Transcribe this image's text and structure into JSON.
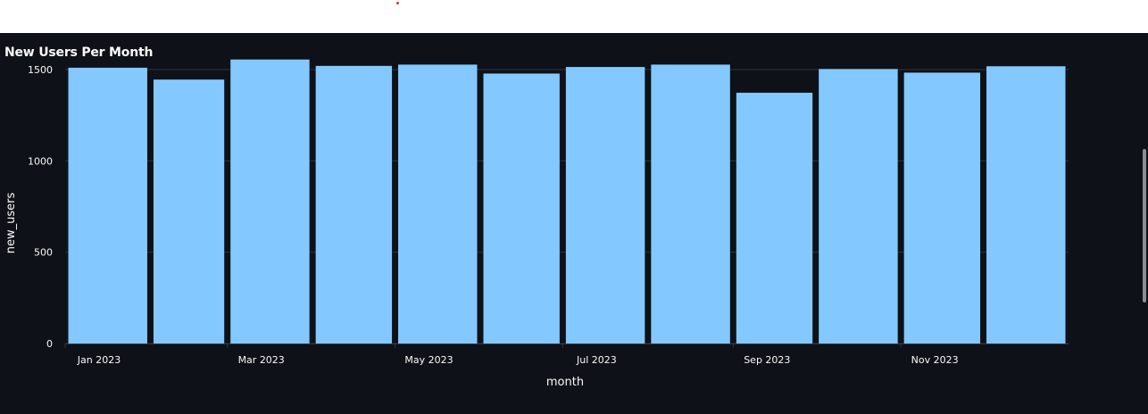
{
  "chart_data": {
    "type": "bar",
    "title": "New Users Per Month",
    "xlabel": "month",
    "ylabel": "new_users",
    "categories": [
      "2023-01",
      "2023-02",
      "2023-03",
      "2023-04",
      "2023-05",
      "2023-06",
      "2023-07",
      "2023-08",
      "2023-09",
      "2023-10",
      "2023-11",
      "2023-12"
    ],
    "category_days": [
      31,
      28,
      31,
      30,
      31,
      30,
      31,
      31,
      30,
      31,
      30,
      31
    ],
    "x_tick_labels": [
      "Jan 2023",
      "Mar 2023",
      "May 2023",
      "Jul 2023",
      "Sep 2023",
      "Nov 2023"
    ],
    "values": [
      1510,
      1445,
      1555,
      1520,
      1527,
      1478,
      1514,
      1527,
      1373,
      1503,
      1483,
      1518
    ],
    "ylim": [
      0,
      1700
    ],
    "y_ticks": [
      0,
      500,
      1000,
      1500
    ],
    "grid": true,
    "bar_color": "#83c9ff",
    "grid_color": "#31333f",
    "background": "#0e1117",
    "text_color": "#fafafa"
  }
}
